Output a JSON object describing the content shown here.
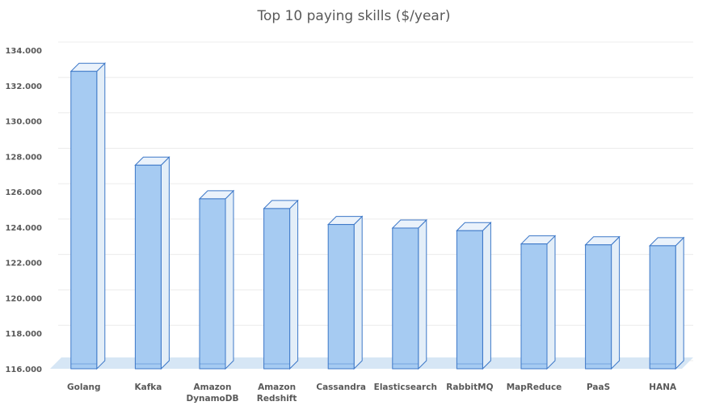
{
  "chart_data": {
    "type": "bar",
    "title": "Top 10 paying skills ($/year)",
    "xlabel": "",
    "ylabel": "",
    "categories": [
      [
        "Golang"
      ],
      [
        "Kafka"
      ],
      [
        "Amazon",
        "DynamoDB"
      ],
      [
        "Amazon",
        "Redshift"
      ],
      [
        "Cassandra"
      ],
      [
        "Elasticsearch"
      ],
      [
        "RabbitMQ"
      ],
      [
        "MapReduce"
      ],
      [
        "PaaS"
      ],
      [
        "HANA"
      ]
    ],
    "values": [
      132800,
      127500,
      125600,
      125050,
      124150,
      123950,
      123800,
      123050,
      123000,
      122950
    ],
    "ylim": [
      116000,
      134000
    ],
    "yticks": [
      116000,
      118000,
      120000,
      122000,
      124000,
      126000,
      128000,
      130000,
      132000,
      134000
    ],
    "ytick_labels": [
      "116.000",
      "118.000",
      "120.000",
      "122.000",
      "124.000",
      "126.000",
      "128.000",
      "130.000",
      "132.000",
      "134.000"
    ],
    "grid": true,
    "style": "3d-bars",
    "colors": {
      "bar_front": "#A6CBF2",
      "bar_side": "#E3EEF8",
      "bar_top": "#EAF2FB",
      "bar_edge": "#3D78C8",
      "floor": "#D6E6F5",
      "grid": "#ECECEC",
      "text": "#595959"
    }
  }
}
